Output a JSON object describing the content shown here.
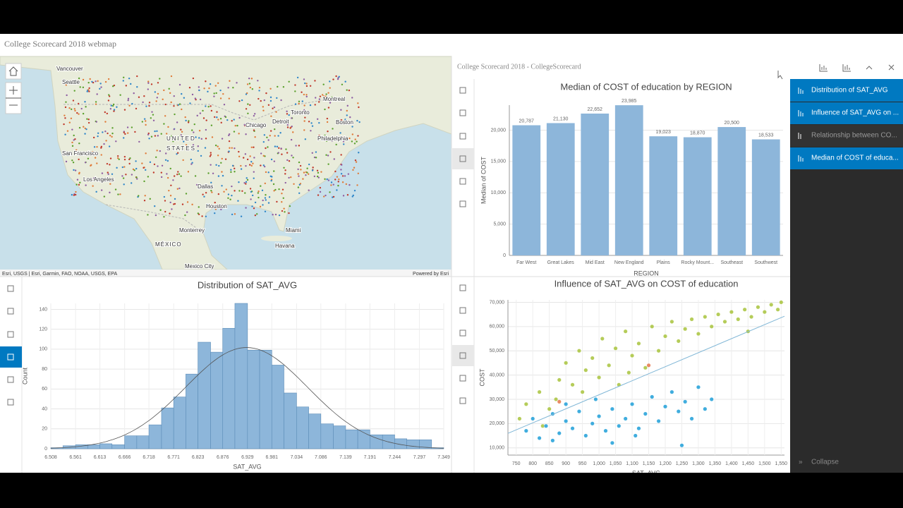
{
  "header": {
    "title": "College Scorecard 2018 webmap"
  },
  "map": {
    "labels": [
      "Vancouver",
      "Seattle",
      "Montreal",
      "Toronto",
      "Detroit",
      "Chicago",
      "Boston",
      "Philadelphia",
      "San Francisco",
      "Los Angeles",
      "Dallas",
      "Houston",
      "Monterrey",
      "Miami",
      "Havana",
      "Mexico City",
      "UNITED",
      "STATES",
      "MÉXICO"
    ],
    "attribution": "Esri, USGS | Esri, Garmin, FAO, NOAA, USGS, EPA",
    "powered": "Powered by Esri"
  },
  "panel": {
    "title": "College Scorecard 2018 - CollegeScorecard"
  },
  "sidebar": {
    "items": [
      "Distribution of SAT_AVG",
      "Influence of SAT_AVG on ...",
      "Relationship between CO...",
      "Median of COST of educa..."
    ],
    "collapse": "Collapse"
  },
  "chart_data": [
    {
      "type": "bar",
      "title": "Median of COST of education by REGION",
      "x_label": "REGION",
      "y_label": "Median of COST",
      "categories": [
        "Far West",
        "Great Lakes",
        "Mid East",
        "New England",
        "Plains",
        "Rocky Mount...",
        "Southeast",
        "Southwest"
      ],
      "values": [
        20787,
        21130,
        22652,
        23985,
        19023,
        18870,
        20500,
        18533
      ],
      "value_labels": [
        "20,787",
        "21,130",
        "22,652",
        "23,985",
        "19,023",
        "18,870",
        "20,500",
        "18,533"
      ],
      "color": "#8db6da",
      "ylim": [
        0,
        24000
      ],
      "yticks": [
        0,
        {
          "value": 5000,
          "label": "5,000"
        },
        {
          "value": 10000,
          "label": "10,000"
        },
        {
          "value": 15000,
          "label": "15,000"
        },
        {
          "value": 20000,
          "label": "20,000"
        }
      ],
      "grid": true
    },
    {
      "type": "histogram",
      "title": "Distribution of SAT_AVG",
      "x_label": "SAT_AVG",
      "y_label": "Count",
      "bins": [
        6.508,
        6.534,
        6.561,
        6.587,
        6.613,
        6.639,
        6.666,
        6.692,
        6.718,
        6.745,
        6.771,
        6.797,
        6.823,
        6.85,
        6.876,
        6.902,
        6.929,
        6.955,
        6.981,
        7.007,
        7.034,
        7.06,
        7.086,
        7.113,
        7.139,
        7.165,
        7.191,
        7.218,
        7.244,
        7.27,
        7.297,
        7.323,
        7.349
      ],
      "values": [
        1,
        3,
        4,
        4,
        5,
        4,
        13,
        13,
        24,
        41,
        52,
        75,
        107,
        97,
        121,
        146,
        99,
        99,
        84,
        56,
        42,
        35,
        25,
        23,
        19,
        19,
        14,
        14,
        10,
        9,
        9,
        1
      ],
      "color": "#8db6da",
      "xlim": [
        6.508,
        7.349
      ],
      "xticks": [
        6.508,
        6.561,
        6.613,
        6.666,
        6.718,
        6.771,
        6.823,
        6.876,
        6.929,
        6.981,
        7.034,
        7.086,
        7.139,
        7.191,
        7.244,
        7.297,
        7.349
      ],
      "ylim": [
        0,
        146
      ],
      "yticks": [
        0,
        20,
        40,
        60,
        80,
        100,
        120,
        140
      ],
      "grid": true
    },
    {
      "type": "scatter",
      "title": "Influence of SAT_AVG on COST of education",
      "x_label": "SAT_AVG",
      "y_label": "COST",
      "series": [
        {
          "color": "#a8c33c",
          "x": [
            780,
            820,
            850,
            880,
            900,
            920,
            940,
            960,
            980,
            1000,
            1010,
            1030,
            1050,
            1060,
            1080,
            1100,
            1120,
            1140,
            1160,
            1180,
            1200,
            1220,
            1240,
            1260,
            1280,
            1300,
            1320,
            1340,
            1360,
            1380,
            1400,
            1420,
            1440,
            1460,
            1480,
            1500,
            1520,
            1540,
            1450,
            1550,
            760,
            830,
            870,
            950,
            1090
          ],
          "values": [
            28000,
            33000,
            26000,
            38000,
            45000,
            36000,
            50000,
            42000,
            47000,
            39000,
            55000,
            44000,
            51000,
            36000,
            58000,
            48000,
            53000,
            43000,
            60000,
            50000,
            56000,
            62000,
            54000,
            59000,
            63000,
            57000,
            64000,
            60000,
            65000,
            62000,
            66000,
            63000,
            67000,
            64000,
            68000,
            66000,
            69000,
            67000,
            58000,
            70000,
            22000,
            19000,
            30000,
            33000,
            41000
          ]
        },
        {
          "color": "#1f9fd8",
          "x": [
            780,
            800,
            820,
            840,
            860,
            880,
            900,
            920,
            940,
            960,
            980,
            1000,
            1020,
            1040,
            1060,
            1080,
            1100,
            1120,
            1140,
            1160,
            1180,
            1200,
            1220,
            1240,
            1260,
            1280,
            1300,
            1320,
            1340,
            1250,
            1040,
            900,
            860,
            1110,
            990
          ],
          "values": [
            17000,
            22000,
            14000,
            19000,
            24000,
            16000,
            21000,
            18000,
            25000,
            15000,
            20000,
            23000,
            17000,
            26000,
            19000,
            22000,
            28000,
            18000,
            24000,
            31000,
            21000,
            27000,
            33000,
            25000,
            29000,
            22000,
            35000,
            26000,
            30000,
            11000,
            12000,
            28000,
            13000,
            15000,
            30000
          ]
        },
        {
          "color": "#e5774a",
          "x": [
            1150,
            880
          ],
          "values": [
            44000,
            29000
          ]
        }
      ],
      "xlim": [
        725,
        1560
      ],
      "xticks": [
        750,
        800,
        850,
        900,
        950,
        {
          "value": 1000,
          "label": "1,000"
        },
        {
          "value": 1050,
          "label": "1,050"
        },
        {
          "value": 1100,
          "label": "1,100"
        },
        {
          "value": 1150,
          "label": "1,150"
        },
        {
          "value": 1200,
          "label": "1,200"
        },
        {
          "value": 1250,
          "label": "1,250"
        },
        {
          "value": 1300,
          "label": "1,300"
        },
        {
          "value": 1350,
          "label": "1,350"
        },
        {
          "value": 1400,
          "label": "1,400"
        },
        {
          "value": 1450,
          "label": "1,450"
        },
        {
          "value": 1500,
          "label": "1,500"
        },
        {
          "value": 1550,
          "label": "1,550"
        }
      ],
      "ylim": [
        7000,
        71000
      ],
      "yticks": [
        {
          "value": 10000,
          "label": "10,000"
        },
        {
          "value": 20000,
          "label": "20,000"
        },
        {
          "value": 30000,
          "label": "30,000"
        },
        {
          "value": 40000,
          "label": "40,000"
        },
        {
          "value": 50000,
          "label": "50,000"
        },
        {
          "value": 60000,
          "label": "60,000"
        },
        {
          "value": 70000,
          "label": "70,000"
        }
      ],
      "grid": true
    }
  ]
}
